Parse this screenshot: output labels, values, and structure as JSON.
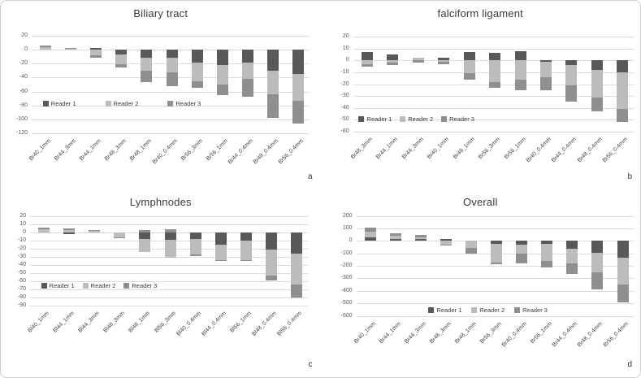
{
  "colors": {
    "reader1": "#595959",
    "reader2": "#bcbcbc",
    "reader3": "#8f8f8f",
    "gridline": "#dcdcdc",
    "title_text": "#3a3a3a",
    "tick_text": "#595959"
  },
  "legend_labels": [
    "Reader 1",
    "Reader 2",
    "Reader 3"
  ],
  "chart_data": [
    {
      "type": "bar",
      "stacked": true,
      "title": "Biliary tract",
      "panel_letter": "a",
      "ylim": [
        -120,
        20
      ],
      "ystep": 20,
      "yticks": [
        20,
        0,
        -20,
        -40,
        -60,
        -80,
        -100,
        -120
      ],
      "grid": true,
      "legend_position": "inside-left",
      "categories": [
        "Br40_1mm",
        "Br44_3mm",
        "Br44_1mm",
        "Br48_3mm",
        "Br48_1mm",
        "Br40_0.4mm",
        "Br56_3mm",
        "Br56_1mm",
        "Br44_0.4mm",
        "Br48_0.4mm",
        "Br56_0.4mm"
      ],
      "series": [
        {
          "name": "Reader 1",
          "color_key": "reader1",
          "values": [
            0,
            0,
            3,
            -7,
            -12,
            -12,
            -18,
            -22,
            -18,
            -30,
            -35
          ]
        },
        {
          "name": "Reader 2",
          "color_key": "reader2",
          "values": [
            4,
            2,
            -8,
            -14,
            -18,
            -20,
            -27,
            -28,
            -24,
            -34,
            -38
          ]
        },
        {
          "name": "Reader 3",
          "color_key": "reader3",
          "values": [
            2,
            1,
            -4,
            -4,
            -16,
            -20,
            -10,
            -15,
            -25,
            -34,
            -33
          ]
        }
      ]
    },
    {
      "type": "bar",
      "stacked": true,
      "title": "falciform ligament",
      "panel_letter": "b",
      "ylim": [
        -60,
        20
      ],
      "ystep": 10,
      "yticks": [
        20,
        10,
        0,
        -10,
        -20,
        -30,
        -40,
        -50,
        -60
      ],
      "grid": true,
      "legend_position": "inside-left",
      "categories": [
        "Br48_3mm",
        "Br44_1mm",
        "Br44_3mm",
        "Br40_1mm",
        "Br48_1mm",
        "Br56_3mm",
        "Br56_1mm",
        "Br40_0.4mm",
        "Br44_0.4mm",
        "Br48_0.4mm",
        "Br56_0.4mm"
      ],
      "series": [
        {
          "name": "Reader 1",
          "color_key": "reader1",
          "values": [
            7,
            5,
            0,
            2,
            7,
            6,
            8,
            -1,
            -4,
            -8,
            -10
          ]
        },
        {
          "name": "Reader 2",
          "color_key": "reader2",
          "values": [
            -3,
            -2,
            2,
            -1,
            -11,
            -18,
            -16,
            -13,
            -17,
            -23,
            -31
          ]
        },
        {
          "name": "Reader 3",
          "color_key": "reader3",
          "values": [
            -2,
            -2,
            -2,
            -2,
            -5,
            -5,
            -9,
            -11,
            -14,
            -12,
            -11
          ]
        }
      ]
    },
    {
      "type": "bar",
      "stacked": true,
      "title": "Lymphnodes",
      "panel_letter": "c",
      "ylim": [
        -90,
        20
      ],
      "ystep": 10,
      "yticks": [
        20,
        10,
        0,
        -10,
        -20,
        -30,
        -40,
        -50,
        -60,
        -70,
        -80,
        -90
      ],
      "grid": true,
      "legend_position": "inside-left",
      "categories": [
        "Bl40_1mm",
        "Bl44_1mm",
        "Bl44_3mm",
        "Bl48_3mm",
        "Bl48_1mm",
        "Bl56_3mm",
        "Bl40_0.4mm",
        "Bl44_0.4mm",
        "Bl56_1mm",
        "Bl48_0.4mm",
        "Bl56_0.4mm"
      ],
      "series": [
        {
          "name": "Reader 1",
          "color_key": "reader1",
          "values": [
            0,
            -2,
            0,
            0,
            -8,
            -9,
            -8,
            -15,
            -10,
            -21,
            -26
          ]
        },
        {
          "name": "Reader 2",
          "color_key": "reader2",
          "values": [
            4,
            3,
            2,
            -6,
            -16,
            -22,
            -19,
            -19,
            -24,
            -32,
            -38
          ]
        },
        {
          "name": "Reader 3",
          "color_key": "reader3",
          "values": [
            2,
            2,
            1,
            -2,
            3,
            4,
            -2,
            -1,
            -2,
            -6,
            -16
          ]
        }
      ]
    },
    {
      "type": "bar",
      "stacked": true,
      "title": "Overall",
      "panel_letter": "d",
      "ylim": [
        -600,
        200
      ],
      "ystep": 100,
      "yticks": [
        200,
        100,
        0,
        -100,
        -200,
        -300,
        -400,
        -500,
        -600
      ],
      "grid": true,
      "legend_position": "inside-bottom-center",
      "categories": [
        "Br40_1mm",
        "Br44_1mm",
        "Br44_3mm",
        "Br48_3mm",
        "Br48_1mm",
        "Br56_3mm",
        "Br40_0.4mm",
        "Br56_1mm",
        "Br44_0.4mm",
        "Br48_0.4mm",
        "Br56_0.4mm"
      ],
      "series": [
        {
          "name": "Reader 1",
          "color_key": "reader1",
          "values": [
            30,
            15,
            15,
            15,
            0,
            -25,
            -30,
            -25,
            -65,
            -95,
            -135
          ]
        },
        {
          "name": "Reader 2",
          "color_key": "reader2",
          "values": [
            40,
            25,
            15,
            -30,
            -60,
            -150,
            -75,
            -135,
            -115,
            -160,
            -215
          ]
        },
        {
          "name": "Reader 3",
          "color_key": "reader3",
          "values": [
            35,
            20,
            20,
            -10,
            -40,
            -10,
            -75,
            -50,
            -85,
            -135,
            -145
          ]
        }
      ]
    }
  ]
}
